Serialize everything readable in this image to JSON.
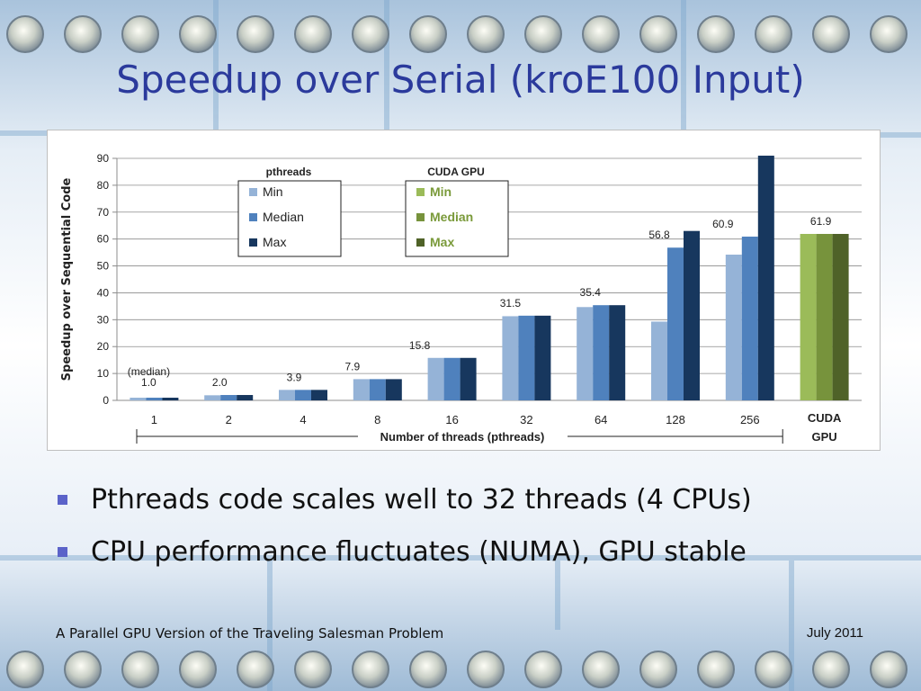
{
  "slide": {
    "title": "Speedup over Serial (kroE100 Input)",
    "bullets": [
      "Pthreads code scales well to 32 threads (4 CPUs)",
      "CPU performance fluctuates (NUMA), GPU stable"
    ],
    "footer_left": "A Parallel GPU Version of the Traveling Salesman Problem",
    "footer_right": "July 2011"
  },
  "colors": {
    "title": "#2b3a9c",
    "bullet": "#5b63c9",
    "pthreads_min": "#95b3d7",
    "pthreads_median": "#4f81bd",
    "pthreads_max": "#17375e",
    "cuda_min": "#9bbb59",
    "cuda_median": "#77933c",
    "cuda_max": "#4f6228"
  },
  "chart_data": {
    "type": "bar",
    "categories": [
      "1",
      "2",
      "4",
      "8",
      "16",
      "32",
      "64",
      "128",
      "256",
      "CUDA GPU"
    ],
    "category_labels": [
      [
        "1"
      ],
      [
        "2"
      ],
      [
        "4"
      ],
      [
        "8"
      ],
      [
        "16"
      ],
      [
        "32"
      ],
      [
        "64"
      ],
      [
        "128"
      ],
      [
        "256"
      ],
      [
        "CUDA",
        "GPU"
      ]
    ],
    "series": [
      {
        "name": "Min",
        "group": "pthreads",
        "values": [
          1.0,
          1.9,
          3.9,
          7.9,
          15.8,
          31.3,
          34.7,
          29.3,
          54.2,
          null
        ]
      },
      {
        "name": "Median",
        "group": "pthreads",
        "values": [
          1.0,
          2.0,
          3.9,
          7.9,
          15.8,
          31.5,
          35.4,
          56.8,
          60.9,
          null
        ]
      },
      {
        "name": "Max",
        "group": "pthreads",
        "values": [
          1.0,
          2.0,
          3.9,
          7.9,
          15.8,
          31.5,
          35.4,
          63.0,
          91.0,
          null
        ]
      },
      {
        "name": "Min",
        "group": "CUDA GPU",
        "values": [
          null,
          null,
          null,
          null,
          null,
          null,
          null,
          null,
          null,
          61.9
        ]
      },
      {
        "name": "Median",
        "group": "CUDA GPU",
        "values": [
          null,
          null,
          null,
          null,
          null,
          null,
          null,
          null,
          null,
          61.9
        ]
      },
      {
        "name": "Max",
        "group": "CUDA GPU",
        "values": [
          null,
          null,
          null,
          null,
          null,
          null,
          null,
          null,
          null,
          61.9
        ]
      }
    ],
    "data_labels": [
      {
        "category": "1",
        "text": "1.0",
        "value": 1.0,
        "note": "(median)"
      },
      {
        "category": "2",
        "text": "2.0",
        "value": 2.0
      },
      {
        "category": "4",
        "text": "3.9",
        "value": 3.9
      },
      {
        "category": "8",
        "text": "7.9",
        "value": 7.9
      },
      {
        "category": "16",
        "text": "15.8",
        "value": 15.8
      },
      {
        "category": "32",
        "text": "31.5",
        "value": 31.5
      },
      {
        "category": "64",
        "text": "35.4",
        "value": 35.4
      },
      {
        "category": "128",
        "text": "56.8",
        "value": 56.8
      },
      {
        "category": "256",
        "text": "60.9",
        "value": 60.9
      },
      {
        "category": "CUDA GPU",
        "text": "61.9",
        "value": 61.9
      }
    ],
    "ylabel": "Speedup over Sequential Code",
    "xlabel": "Number of threads (pthreads)",
    "ylim": [
      0,
      90
    ],
    "yticks": [
      0,
      10,
      20,
      30,
      40,
      50,
      60,
      70,
      80,
      90
    ],
    "grid": true,
    "legend": {
      "placement": "top-left",
      "groups": [
        {
          "title": "pthreads",
          "items": [
            "Min",
            "Median",
            "Max"
          ]
        },
        {
          "title": "CUDA GPU",
          "items": [
            "Min",
            "Median",
            "Max"
          ]
        }
      ]
    }
  }
}
